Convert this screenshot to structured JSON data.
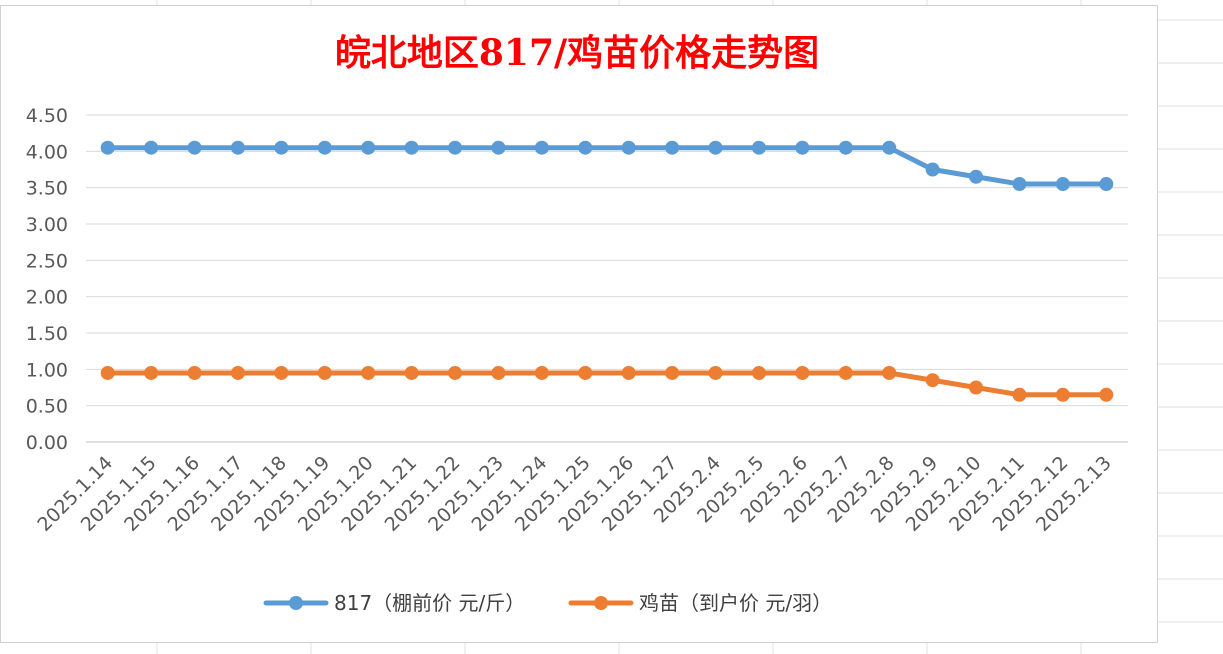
{
  "chart_data": {
    "type": "line",
    "title": "皖北地区817/鸡苗价格走势图",
    "categories": [
      "2025.1.14",
      "2025.1.15",
      "2025.1.16",
      "2025.1.17",
      "2025.1.18",
      "2025.1.19",
      "2025.1.20",
      "2025.1.21",
      "2025.1.22",
      "2025.1.23",
      "2025.1.24",
      "2025.1.25",
      "2025.1.26",
      "2025.1.27",
      "2025.2.4",
      "2025.2.5",
      "2025.2.6",
      "2025.2.7",
      "2025.2.8",
      "2025.2.9",
      "2025.2.10",
      "2025.2.11",
      "2025.2.12",
      "2025.2.13"
    ],
    "y_ticks": [
      "0.00",
      "0.50",
      "1.00",
      "1.50",
      "2.00",
      "2.50",
      "3.00",
      "3.50",
      "4.00",
      "4.50"
    ],
    "ylim": [
      0,
      4.5
    ],
    "grid": true,
    "legend_position": "bottom",
    "series": [
      {
        "name": "817（棚前价 元/斤）",
        "color": "#5b9bd5",
        "values": [
          4.05,
          4.05,
          4.05,
          4.05,
          4.05,
          4.05,
          4.05,
          4.05,
          4.05,
          4.05,
          4.05,
          4.05,
          4.05,
          4.05,
          4.05,
          4.05,
          4.05,
          4.05,
          4.05,
          3.75,
          3.65,
          3.55,
          3.55,
          3.55
        ]
      },
      {
        "name": "鸡苗（到户价 元/羽）",
        "color": "#ed7d31",
        "values": [
          0.95,
          0.95,
          0.95,
          0.95,
          0.95,
          0.95,
          0.95,
          0.95,
          0.95,
          0.95,
          0.95,
          0.95,
          0.95,
          0.95,
          0.95,
          0.95,
          0.95,
          0.95,
          0.95,
          0.85,
          0.75,
          0.65,
          0.65,
          0.65
        ]
      }
    ],
    "title_color": "#ff0000"
  }
}
